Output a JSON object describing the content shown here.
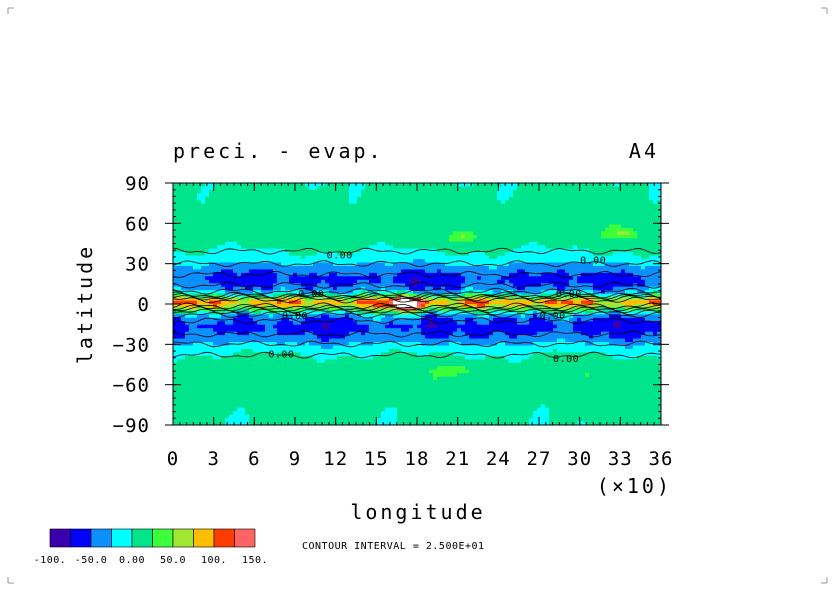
{
  "chart_data": {
    "type": "heatmap",
    "title": "preci. - evap.",
    "panel_label": "A4",
    "xlabel": "longitude",
    "ylabel": "latitude",
    "x_multiplier_label": "(×10)",
    "xlim": [
      0,
      36
    ],
    "ylim": [
      -90,
      90
    ],
    "x_ticks": [
      0,
      3,
      6,
      9,
      12,
      15,
      18,
      21,
      24,
      27,
      30,
      33,
      36
    ],
    "x_tick_labels": [
      "0",
      "3",
      "6",
      "9",
      "12",
      "15",
      "18",
      "21",
      "24",
      "27",
      "30",
      "33",
      "36"
    ],
    "y_ticks": [
      90,
      60,
      30,
      0,
      -30,
      -60,
      -90
    ],
    "y_tick_labels": [
      "90",
      "60",
      "30",
      "0",
      "−30",
      "−60",
      "−90"
    ],
    "contour_interval_text": "CONTOUR INTERVAL = 2.500E+01",
    "contour_labels": [
      {
        "text": "0.00",
        "lon": 12.3,
        "lat": 37
      },
      {
        "text": "0.00",
        "lon": 31.0,
        "lat": 33
      },
      {
        "text": "0.00",
        "lon": 10.2,
        "lat": 8
      },
      {
        "text": "0.00",
        "lon": 29.2,
        "lat": 8
      },
      {
        "text": "0.00",
        "lon": 9.0,
        "lat": -8
      },
      {
        "text": "0.00",
        "lon": 28.0,
        "lat": -8
      },
      {
        "text": "0.00",
        "lon": 8.0,
        "lat": -37
      },
      {
        "text": "0.00",
        "lon": 29.0,
        "lat": -40
      }
    ],
    "zonal_profile": [
      {
        "lat": 90,
        "value": 5
      },
      {
        "lat": 75,
        "value": 10
      },
      {
        "lat": 60,
        "value": 15
      },
      {
        "lat": 50,
        "value": 15
      },
      {
        "lat": 42,
        "value": 5
      },
      {
        "lat": 34,
        "value": -10
      },
      {
        "lat": 26,
        "value": -40
      },
      {
        "lat": 18,
        "value": -60
      },
      {
        "lat": 12,
        "value": -45
      },
      {
        "lat": 7,
        "value": -5
      },
      {
        "lat": 4,
        "value": 65
      },
      {
        "lat": 1,
        "value": 95
      },
      {
        "lat": -2,
        "value": 70
      },
      {
        "lat": -5,
        "value": 10
      },
      {
        "lat": -10,
        "value": -45
      },
      {
        "lat": -17,
        "value": -60
      },
      {
        "lat": -25,
        "value": -45
      },
      {
        "lat": -32,
        "value": -15
      },
      {
        "lat": -40,
        "value": 5
      },
      {
        "lat": -50,
        "value": 15
      },
      {
        "lat": -60,
        "value": 15
      },
      {
        "lat": -75,
        "value": 10
      },
      {
        "lat": -90,
        "value": 5
      }
    ],
    "colorbar": {
      "colors": [
        "#3a00b0",
        "#0000ff",
        "#0a90ff",
        "#00ffff",
        "#00e48c",
        "#3cff3c",
        "#a0e632",
        "#ffbe00",
        "#ff3c00",
        "#ff6464"
      ],
      "tick_labels": [
        "-100.",
        "-50.0",
        "0.00",
        "50.0",
        "100.",
        "150."
      ]
    }
  }
}
